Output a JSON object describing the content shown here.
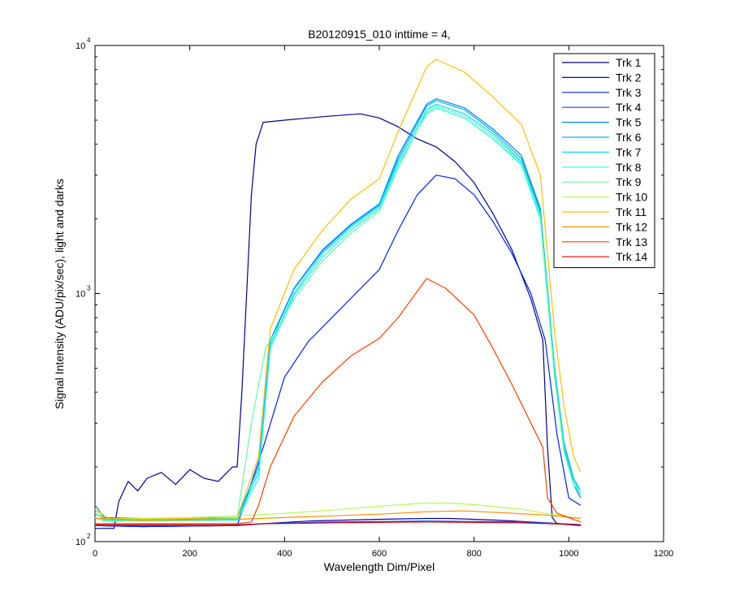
{
  "chart_data": {
    "type": "line",
    "title": "B20120915_010 inttime = 4,",
    "xlabel": "Wavelength Dim/Pixel",
    "ylabel": "Signal Intensity (ADU/pix/sec), light and darks",
    "xlim": [
      0,
      1200
    ],
    "ylim": [
      100,
      10000
    ],
    "yscale": "log",
    "xticks": [
      "0",
      "200",
      "400",
      "600",
      "800",
      "1000",
      "1200"
    ],
    "yticks": [
      {
        "base": "10",
        "exp": "2",
        "value": 100
      },
      {
        "base": "10",
        "exp": "3",
        "value": 1000
      },
      {
        "base": "10",
        "exp": "4",
        "value": 10000
      }
    ],
    "grid": false,
    "legend_position": "top-right",
    "series": [
      {
        "name": "Trk 1",
        "color": "#00008F",
        "points": [
          [
            0,
            113
          ],
          [
            40,
            113
          ],
          [
            50,
            145
          ],
          [
            70,
            175
          ],
          [
            90,
            160
          ],
          [
            110,
            180
          ],
          [
            140,
            190
          ],
          [
            170,
            170
          ],
          [
            200,
            195
          ],
          [
            230,
            180
          ],
          [
            260,
            175
          ],
          [
            290,
            200
          ],
          [
            300,
            200
          ],
          [
            310,
            400
          ],
          [
            320,
            1000
          ],
          [
            330,
            2500
          ],
          [
            340,
            4000
          ],
          [
            355,
            4900
          ],
          [
            400,
            5000
          ],
          [
            450,
            5100
          ],
          [
            500,
            5200
          ],
          [
            560,
            5300
          ],
          [
            600,
            5100
          ],
          [
            640,
            4700
          ],
          [
            680,
            4200
          ],
          [
            720,
            3900
          ],
          [
            760,
            3400
          ],
          [
            800,
            2800
          ],
          [
            840,
            2100
          ],
          [
            880,
            1500
          ],
          [
            920,
            950
          ],
          [
            945,
            650
          ],
          [
            955,
            240
          ],
          [
            965,
            125
          ],
          [
            975,
            118
          ],
          [
            1025,
            116
          ]
        ]
      },
      {
        "name": "Trk 2",
        "color": "#0000BF",
        "points": [
          [
            0,
            116
          ],
          [
            100,
            115
          ],
          [
            300,
            116
          ],
          [
            355,
            118
          ],
          [
            450,
            121
          ],
          [
            600,
            123
          ],
          [
            700,
            124
          ],
          [
            750,
            124
          ],
          [
            850,
            122
          ],
          [
            950,
            119
          ],
          [
            1025,
            117
          ]
        ]
      },
      {
        "name": "Trk 3",
        "color": "#0020FF",
        "points": [
          [
            0,
            116
          ],
          [
            100,
            115
          ],
          [
            300,
            116
          ],
          [
            355,
            240
          ],
          [
            400,
            460
          ],
          [
            450,
            640
          ],
          [
            500,
            800
          ],
          [
            550,
            1000
          ],
          [
            600,
            1250
          ],
          [
            640,
            1800
          ],
          [
            680,
            2500
          ],
          [
            720,
            3000
          ],
          [
            760,
            2900
          ],
          [
            800,
            2500
          ],
          [
            840,
            1950
          ],
          [
            880,
            1450
          ],
          [
            920,
            1000
          ],
          [
            950,
            650
          ],
          [
            975,
            270
          ],
          [
            1000,
            150
          ],
          [
            1025,
            140
          ]
        ]
      },
      {
        "name": "Trk 4",
        "color": "#0050FF",
        "points": [
          [
            0,
            116
          ],
          [
            300,
            116
          ],
          [
            355,
            118
          ],
          [
            500,
            120
          ],
          [
            700,
            121
          ],
          [
            900,
            120
          ],
          [
            1025,
            117
          ]
        ]
      },
      {
        "name": "Trk 5",
        "color": "#0080FF",
        "points": [
          [
            0,
            140
          ],
          [
            20,
            125
          ],
          [
            100,
            124
          ],
          [
            300,
            125
          ],
          [
            345,
            200
          ],
          [
            370,
            650
          ],
          [
            420,
            1050
          ],
          [
            480,
            1500
          ],
          [
            540,
            1900
          ],
          [
            600,
            2300
          ],
          [
            640,
            3600
          ],
          [
            700,
            5800
          ],
          [
            720,
            6100
          ],
          [
            780,
            5600
          ],
          [
            840,
            4600
          ],
          [
            900,
            3600
          ],
          [
            940,
            2200
          ],
          [
            970,
            500
          ],
          [
            990,
            240
          ],
          [
            1010,
            170
          ],
          [
            1025,
            150
          ]
        ]
      },
      {
        "name": "Trk 6",
        "color": "#00B0FF",
        "points": [
          [
            0,
            135
          ],
          [
            20,
            124
          ],
          [
            100,
            123
          ],
          [
            300,
            124
          ],
          [
            345,
            200
          ],
          [
            370,
            640
          ],
          [
            420,
            1040
          ],
          [
            480,
            1480
          ],
          [
            540,
            1880
          ],
          [
            600,
            2280
          ],
          [
            640,
            3500
          ],
          [
            700,
            5700
          ],
          [
            720,
            6000
          ],
          [
            780,
            5500
          ],
          [
            840,
            4500
          ],
          [
            900,
            3500
          ],
          [
            940,
            2150
          ],
          [
            970,
            500
          ],
          [
            990,
            250
          ],
          [
            1010,
            180
          ],
          [
            1025,
            160
          ]
        ]
      },
      {
        "name": "Trk 7",
        "color": "#00DFFF",
        "points": [
          [
            0,
            130
          ],
          [
            20,
            123
          ],
          [
            100,
            122
          ],
          [
            300,
            123
          ],
          [
            345,
            190
          ],
          [
            370,
            620
          ],
          [
            420,
            1000
          ],
          [
            480,
            1450
          ],
          [
            540,
            1850
          ],
          [
            600,
            2250
          ],
          [
            640,
            3400
          ],
          [
            700,
            5500
          ],
          [
            720,
            5800
          ],
          [
            780,
            5300
          ],
          [
            840,
            4400
          ],
          [
            900,
            3400
          ],
          [
            940,
            2100
          ],
          [
            970,
            480
          ],
          [
            990,
            240
          ],
          [
            1010,
            175
          ],
          [
            1025,
            160
          ]
        ]
      },
      {
        "name": "Trk 8",
        "color": "#10FFEF",
        "points": [
          [
            0,
            125
          ],
          [
            20,
            122
          ],
          [
            100,
            121
          ],
          [
            300,
            122
          ],
          [
            345,
            180
          ],
          [
            370,
            600
          ],
          [
            420,
            980
          ],
          [
            480,
            1400
          ],
          [
            540,
            1800
          ],
          [
            600,
            2200
          ],
          [
            640,
            3300
          ],
          [
            700,
            5300
          ],
          [
            720,
            5600
          ],
          [
            780,
            5100
          ],
          [
            840,
            4200
          ],
          [
            900,
            3300
          ],
          [
            940,
            2000
          ],
          [
            970,
            460
          ],
          [
            990,
            230
          ],
          [
            1010,
            170
          ],
          [
            1025,
            155
          ]
        ]
      },
      {
        "name": "Trk 9",
        "color": "#60FF9F",
        "points": [
          [
            0,
            125
          ],
          [
            20,
            121
          ],
          [
            100,
            121
          ],
          [
            300,
            124
          ],
          [
            330,
            300
          ],
          [
            360,
            600
          ],
          [
            420,
            950
          ],
          [
            480,
            1350
          ],
          [
            540,
            1750
          ],
          [
            600,
            2150
          ],
          [
            640,
            3200
          ],
          [
            700,
            5400
          ],
          [
            720,
            5700
          ],
          [
            780,
            5200
          ],
          [
            840,
            4300
          ],
          [
            900,
            3350
          ],
          [
            940,
            2050
          ],
          [
            970,
            470
          ],
          [
            990,
            230
          ],
          [
            1010,
            170
          ],
          [
            1025,
            160
          ]
        ]
      },
      {
        "name": "Trk 10",
        "color": "#AFFF50",
        "points": [
          [
            0,
            135
          ],
          [
            30,
            124
          ],
          [
            100,
            124
          ],
          [
            200,
            125
          ],
          [
            300,
            127
          ],
          [
            400,
            130
          ],
          [
            500,
            134
          ],
          [
            600,
            139
          ],
          [
            700,
            143
          ],
          [
            750,
            143
          ],
          [
            800,
            141
          ],
          [
            900,
            135
          ],
          [
            950,
            130
          ],
          [
            1025,
            124
          ]
        ]
      },
      {
        "name": "Trk 11",
        "color": "#FFBF00",
        "points": [
          [
            0,
            135
          ],
          [
            20,
            124
          ],
          [
            100,
            123
          ],
          [
            300,
            125
          ],
          [
            345,
            220
          ],
          [
            370,
            720
          ],
          [
            420,
            1250
          ],
          [
            480,
            1800
          ],
          [
            540,
            2400
          ],
          [
            600,
            2900
          ],
          [
            640,
            4500
          ],
          [
            700,
            8200
          ],
          [
            720,
            8800
          ],
          [
            780,
            7800
          ],
          [
            840,
            6200
          ],
          [
            900,
            4800
          ],
          [
            940,
            3000
          ],
          [
            970,
            700
          ],
          [
            990,
            350
          ],
          [
            1010,
            220
          ],
          [
            1025,
            190
          ]
        ]
      },
      {
        "name": "Trk 12",
        "color": "#FF8F00",
        "points": [
          [
            0,
            124
          ],
          [
            100,
            122
          ],
          [
            300,
            123
          ],
          [
            400,
            125
          ],
          [
            500,
            127
          ],
          [
            600,
            129
          ],
          [
            700,
            132
          ],
          [
            780,
            133
          ],
          [
            850,
            131
          ],
          [
            950,
            128
          ],
          [
            1025,
            124
          ]
        ]
      },
      {
        "name": "Trk 13",
        "color": "#FF4000",
        "points": [
          [
            0,
            118
          ],
          [
            300,
            118
          ],
          [
            330,
            120
          ],
          [
            345,
            140
          ],
          [
            370,
            200
          ],
          [
            420,
            320
          ],
          [
            480,
            440
          ],
          [
            540,
            560
          ],
          [
            600,
            660
          ],
          [
            640,
            800
          ],
          [
            700,
            1150
          ],
          [
            740,
            1050
          ],
          [
            800,
            820
          ],
          [
            840,
            600
          ],
          [
            880,
            430
          ],
          [
            920,
            300
          ],
          [
            945,
            240
          ],
          [
            955,
            150
          ],
          [
            965,
            140
          ],
          [
            975,
            130
          ],
          [
            1025,
            120
          ]
        ]
      },
      {
        "name": "Trk 14",
        "color": "#DF0000",
        "points": [
          [
            0,
            117
          ],
          [
            300,
            117
          ],
          [
            355,
            118
          ],
          [
            500,
            119
          ],
          [
            700,
            120
          ],
          [
            900,
            119
          ],
          [
            1025,
            117
          ]
        ]
      }
    ]
  }
}
